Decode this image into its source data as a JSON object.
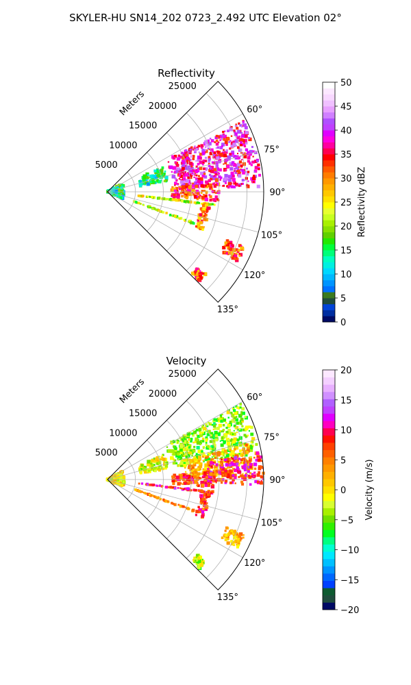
{
  "figure": {
    "suptitle": "SKYLER-HU  SN14_202  0723_2.492 UTC Elevation 02°"
  },
  "chart_data": [
    {
      "type": "heatmap",
      "projection": "polar-sector",
      "title": "Reflectivity",
      "range_label": "Meters",
      "range_ticks": [
        5000,
        10000,
        15000,
        20000,
        25000
      ],
      "range_tick_labels": [
        "5000",
        "10000",
        "15000",
        "20000",
        "25000"
      ],
      "rmax": 28000,
      "azimuth_range_deg": [
        45,
        135
      ],
      "azimuth_ticks": [
        60,
        75,
        90,
        105,
        120,
        135
      ],
      "azimuth_tick_labels": [
        "60°",
        "75°",
        "90°",
        "105°",
        "120°",
        "135°"
      ],
      "grid": true,
      "colorbar": {
        "label": "Reflectivity dBZ",
        "range": [
          0,
          50
        ],
        "ticks": [
          0,
          5,
          10,
          15,
          20,
          25,
          30,
          35,
          40,
          45,
          50
        ],
        "tick_labels": [
          "0",
          "5",
          "10",
          "15",
          "20",
          "25",
          "30",
          "35",
          "40",
          "45",
          "50"
        ],
        "colors": [
          "#000a64",
          "#002ea0",
          "#0044d8",
          "#1f4c3c",
          "#3b7a1f",
          "#0070ff",
          "#0094ff",
          "#00b8ff",
          "#00d8ff",
          "#00f0e0",
          "#00ffc0",
          "#00ff7a",
          "#00ff3a",
          "#22e800",
          "#5fd000",
          "#88e000",
          "#a8f000",
          "#c8ff20",
          "#e8ff30",
          "#ffff00",
          "#ffe000",
          "#ffc800",
          "#ffb000",
          "#ff9800",
          "#ff7c00",
          "#ff5a00",
          "#ff3000",
          "#ff0000",
          "#ff0050",
          "#ff00a0",
          "#ff00e0",
          "#e000ff",
          "#c040ff",
          "#b050ff",
          "#d080ff",
          "#e8a0ff",
          "#f0c0ff",
          "#f8d8ff",
          "#fce8ff",
          "#ffffff"
        ]
      },
      "echo_regions": [
        {
          "feature": "storm core",
          "az": [
            62,
            88
          ],
          "range_m": [
            12000,
            27500
          ],
          "dbz": 38
        },
        {
          "feature": "storm south lobe",
          "az": [
            86,
            95
          ],
          "range_m": [
            11500,
            20000
          ],
          "dbz": 33
        },
        {
          "feature": "ray line",
          "az": 97,
          "range_m": [
            5500,
            19500
          ],
          "dbz": 22
        },
        {
          "feature": "ray line",
          "az": 110,
          "range_m": [
            5000,
            16500
          ],
          "dbz": 21
        },
        {
          "feature": "crossing streak",
          "az": [
            97,
            112
          ],
          "range_m": [
            17000,
            18500
          ],
          "dbz": 30
        },
        {
          "feature": "far echo",
          "az": [
            112,
            118
          ],
          "range_m": [
            23000,
            26500
          ],
          "dbz": 32
        },
        {
          "feature": "far echo",
          "az": [
            130,
            134
          ],
          "range_m": [
            21000,
            23000
          ],
          "dbz": 32
        },
        {
          "feature": "near-radar clutter",
          "az": [
            60,
            115
          ],
          "range_m": [
            0,
            3000
          ],
          "dbz": 14
        },
        {
          "feature": "scattered echoes",
          "az": [
            66,
            80
          ],
          "range_m": [
            6000,
            11000
          ],
          "dbz": 14
        }
      ]
    },
    {
      "type": "heatmap",
      "projection": "polar-sector",
      "title": "Velocity",
      "range_label": "Meters",
      "range_ticks": [
        5000,
        10000,
        15000,
        20000,
        25000
      ],
      "range_tick_labels": [
        "5000",
        "10000",
        "15000",
        "20000",
        "25000"
      ],
      "rmax": 28000,
      "azimuth_range_deg": [
        45,
        135
      ],
      "azimuth_ticks": [
        60,
        75,
        90,
        105,
        120,
        135
      ],
      "azimuth_tick_labels": [
        "60°",
        "75°",
        "90°",
        "105°",
        "120°",
        "135°"
      ],
      "grid": true,
      "colorbar": {
        "label": "Velocity (m/s)",
        "range": [
          -20,
          20
        ],
        "ticks": [
          -20,
          -15,
          -10,
          -5,
          0,
          5,
          10,
          15,
          20
        ],
        "tick_labels": [
          "−20",
          "−15",
          "−10",
          "−5",
          "0",
          "5",
          "10",
          "15",
          "20"
        ],
        "colors": [
          "#000a64",
          "#1f4c3c",
          "#0e5a30",
          "#0040ff",
          "#0068ff",
          "#0094ff",
          "#00c0ff",
          "#00e8ff",
          "#00ffd0",
          "#00ff80",
          "#00ff20",
          "#30f000",
          "#70e000",
          "#a8f000",
          "#d8ff30",
          "#ffff00",
          "#ffe000",
          "#ffc800",
          "#ffb000",
          "#ff9800",
          "#ff8000",
          "#ff6000",
          "#ff4000",
          "#ff1000",
          "#ff0050",
          "#ff00c0",
          "#e000ff",
          "#c040ff",
          "#b060ff",
          "#d090ff",
          "#e8b0ff",
          "#f4d0ff",
          "#fce8ff"
        ]
      },
      "echo_regions": [
        {
          "feature": "storm inbound",
          "az": [
            60,
            80
          ],
          "range_m": [
            12000,
            27500
          ],
          "ms": -4
        },
        {
          "feature": "storm mixed",
          "az": [
            76,
            89
          ],
          "range_m": [
            14000,
            26000
          ],
          "ms": 2
        },
        {
          "feature": "storm outbound",
          "az": [
            80,
            92
          ],
          "range_m": [
            18000,
            28000
          ],
          "ms": 9
        },
        {
          "feature": "storm south lobe",
          "az": [
            86,
            94
          ],
          "range_m": [
            11500,
            19500
          ],
          "ms": 7
        },
        {
          "feature": "ray line",
          "az": 97,
          "range_m": [
            5500,
            19500
          ],
          "ms": 9
        },
        {
          "feature": "ray line",
          "az": 110,
          "range_m": [
            5000,
            16500
          ],
          "ms": 4
        },
        {
          "feature": "crossing streak",
          "az": [
            97,
            112
          ],
          "range_m": [
            17000,
            18500
          ],
          "ms": 8
        },
        {
          "feature": "far echo",
          "az": [
            112,
            118
          ],
          "range_m": [
            23000,
            26500
          ],
          "ms": 2
        },
        {
          "feature": "far echo",
          "az": [
            130,
            134
          ],
          "range_m": [
            21000,
            23000
          ],
          "ms": -3
        },
        {
          "feature": "near-radar clutter",
          "az": [
            60,
            115
          ],
          "range_m": [
            0,
            3000
          ],
          "ms": 0
        },
        {
          "feature": "scattered echoes",
          "az": [
            66,
            80
          ],
          "range_m": [
            6000,
            11000
          ],
          "ms": -2
        }
      ]
    }
  ]
}
